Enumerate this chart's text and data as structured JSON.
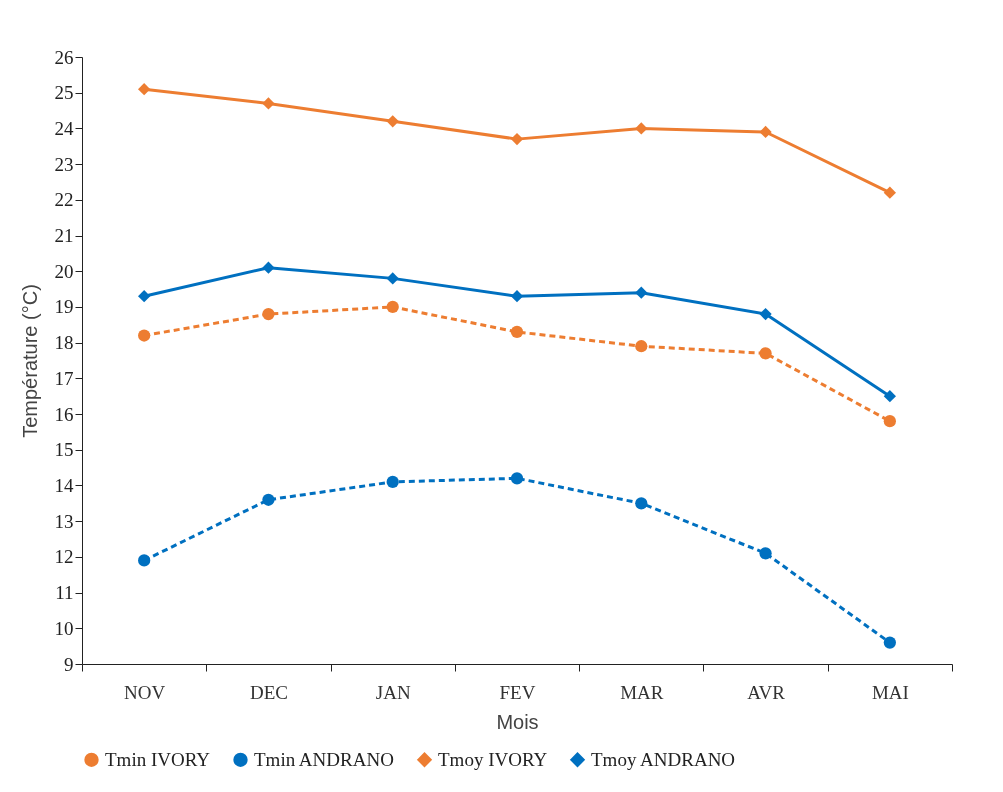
{
  "chart_data": {
    "type": "line",
    "xlabel": "Mois",
    "ylabel": "Température (°C)",
    "categories": [
      "NOV",
      "DEC",
      "JAN",
      "FEV",
      "MAR",
      "AVR",
      "MAI"
    ],
    "ylim": [
      9,
      26
    ],
    "yticks": [
      9,
      10,
      11,
      12,
      13,
      14,
      15,
      16,
      17,
      18,
      19,
      20,
      21,
      22,
      23,
      24,
      25,
      26
    ],
    "grid": false,
    "legend": "bottom",
    "series": [
      {
        "name": "Tmin IVORY",
        "color": "#ed7d31",
        "marker": "circle",
        "line_style": "dashed",
        "values": [
          18.2,
          18.8,
          19.0,
          18.3,
          17.9,
          17.7,
          15.8
        ]
      },
      {
        "name": "Tmin ANDRANO",
        "color": "#0070c0",
        "marker": "circle",
        "line_style": "dashed",
        "values": [
          11.9,
          13.6,
          14.1,
          14.2,
          13.5,
          12.1,
          9.6
        ]
      },
      {
        "name": "Tmoy IVORY",
        "color": "#ed7d31",
        "marker": "diamond",
        "line_style": "solid",
        "values": [
          25.1,
          24.7,
          24.2,
          23.7,
          24.0,
          23.9,
          22.2
        ]
      },
      {
        "name": "Tmoy ANDRANO",
        "color": "#0070c0",
        "marker": "diamond",
        "line_style": "solid",
        "values": [
          19.3,
          20.1,
          19.8,
          19.3,
          19.4,
          18.8,
          16.5
        ]
      }
    ]
  }
}
